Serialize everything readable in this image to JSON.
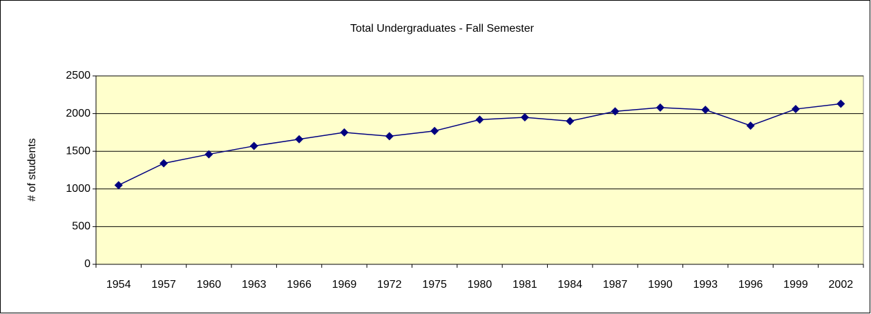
{
  "chart_data": {
    "type": "line",
    "title": "Total Undergraduates - Fall Semester",
    "y_label": "# of students",
    "annotation": "`",
    "categories": [
      "1954",
      "1957",
      "1960",
      "1963",
      "1966",
      "1969",
      "1972",
      "1975",
      "1980",
      "1981",
      "1984",
      "1987",
      "1990",
      "1993",
      "1996",
      "1999",
      "2002"
    ],
    "series": [
      {
        "name": "Total Undergraduates",
        "color": "#000080",
        "values": [
          1050,
          1340,
          1460,
          1570,
          1660,
          1750,
          1700,
          1770,
          1920,
          1950,
          1900,
          2030,
          2080,
          2050,
          1840,
          2060,
          2130
        ]
      }
    ],
    "ylim": [
      0,
      2500
    ],
    "yticks": [
      0,
      500,
      1000,
      1500,
      2000,
      2500
    ],
    "grid": true,
    "background": "#ffffcc"
  }
}
